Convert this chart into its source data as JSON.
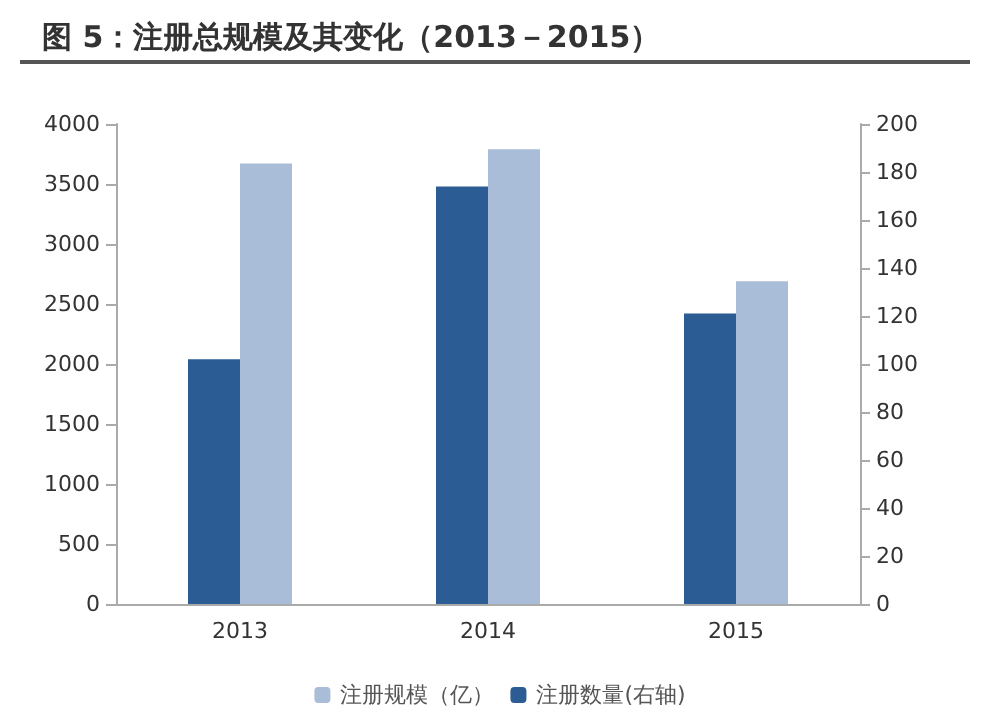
{
  "chart_data": {
    "type": "bar",
    "title": "图 5：注册总规模及其变化（2013－2015）",
    "categories": [
      "2013",
      "2014",
      "2015"
    ],
    "series": [
      {
        "name": "注册规模（亿）",
        "color": "#a9bcd8",
        "values": [
          3670,
          3790,
          2690
        ]
      },
      {
        "name": "注册数量(右轴)",
        "color": "#2b5c93",
        "values": [
          102,
          174,
          121
        ],
        "axis": "y2"
      }
    ],
    "ylim": [
      0,
      4000
    ],
    "yticks": [
      0,
      500,
      1000,
      1500,
      2000,
      2500,
      3000,
      3500,
      4000
    ],
    "y2lim": [
      0,
      200
    ],
    "y2ticks": [
      0,
      20,
      40,
      60,
      80,
      100,
      120,
      140,
      160,
      180,
      200
    ],
    "grid": false,
    "legend": "bottom"
  }
}
